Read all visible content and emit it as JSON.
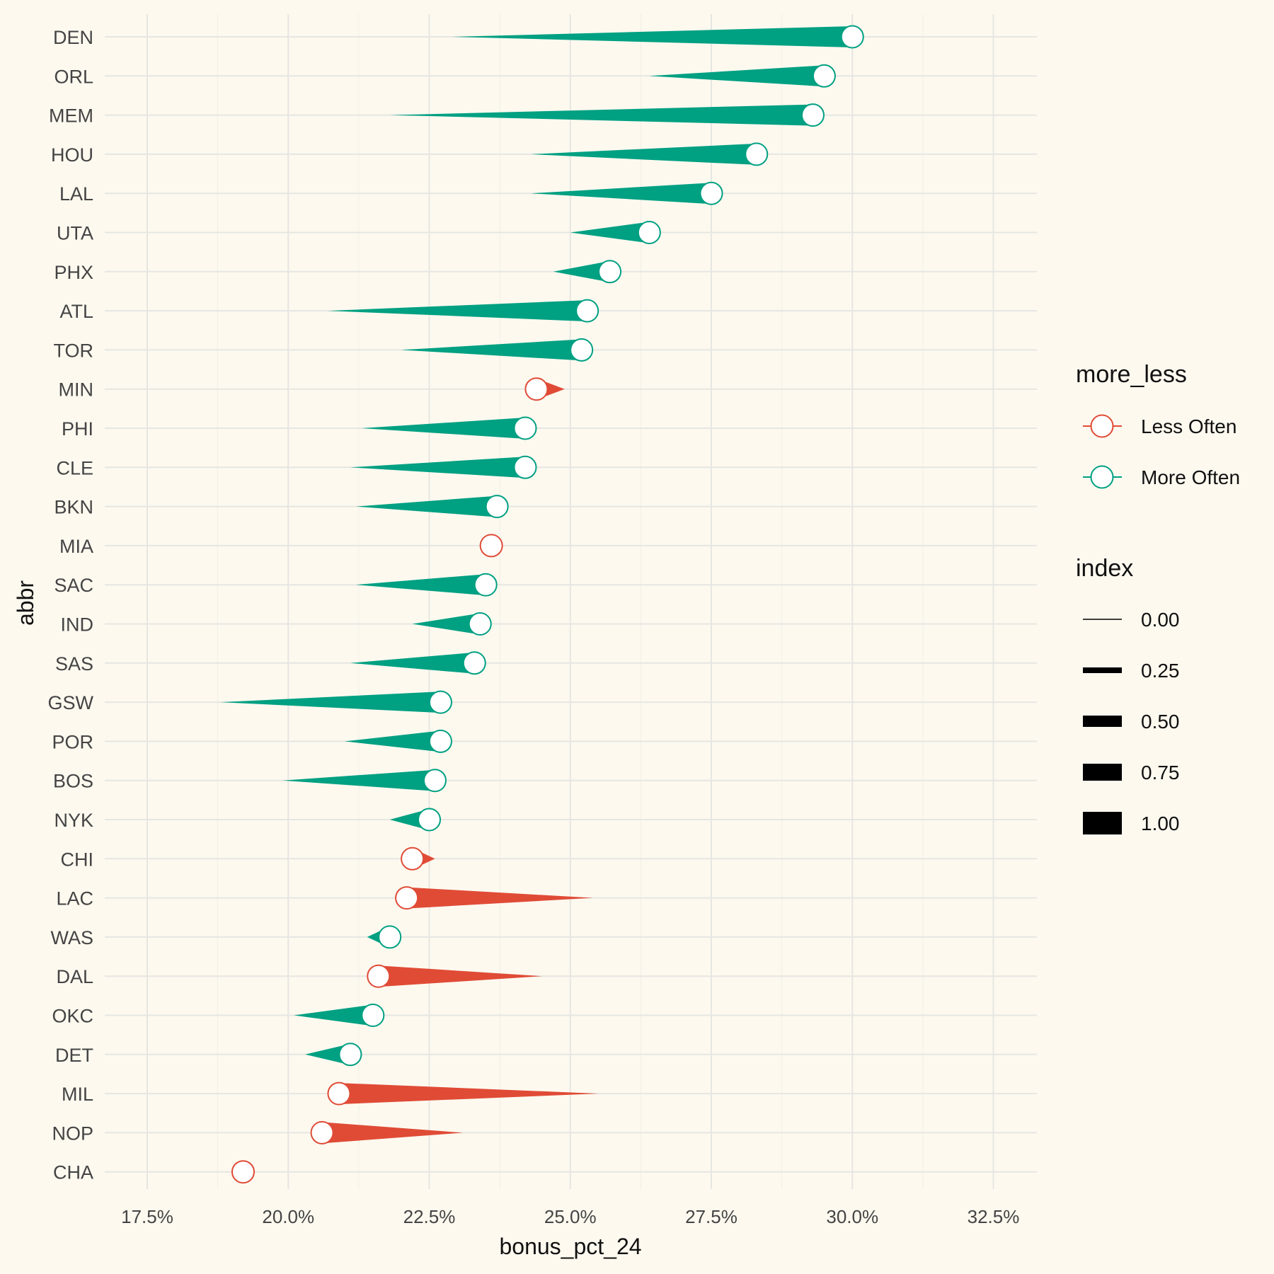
{
  "chart_data": {
    "type": "dumbbell",
    "title": "",
    "xlabel": "bonus_pct_24",
    "ylabel": "abbr",
    "xlim": [
      17.5,
      32.5
    ],
    "x_ticks": [
      17.5,
      20.0,
      22.5,
      25.0,
      27.5,
      30.0,
      32.5
    ],
    "x_tick_labels": [
      "17.5%",
      "20.0%",
      "22.5%",
      "25.0%",
      "27.5%",
      "30.0%",
      "32.5%"
    ],
    "grid": true,
    "legend_position": "right",
    "colors": {
      "Less Often": "#e04b36",
      "More Often": "#00a082"
    },
    "rows": [
      {
        "abbr": "DEN",
        "bonus_pct_24": 30.0,
        "bonus_pct_23": 22.9,
        "more_less": "More Often"
      },
      {
        "abbr": "ORL",
        "bonus_pct_24": 29.5,
        "bonus_pct_23": 26.4,
        "more_less": "More Often"
      },
      {
        "abbr": "MEM",
        "bonus_pct_24": 29.3,
        "bonus_pct_23": 21.8,
        "more_less": "More Often"
      },
      {
        "abbr": "HOU",
        "bonus_pct_24": 28.3,
        "bonus_pct_23": 24.3,
        "more_less": "More Often"
      },
      {
        "abbr": "LAL",
        "bonus_pct_24": 27.5,
        "bonus_pct_23": 24.3,
        "more_less": "More Often"
      },
      {
        "abbr": "UTA",
        "bonus_pct_24": 26.4,
        "bonus_pct_23": 25.0,
        "more_less": "More Often"
      },
      {
        "abbr": "PHX",
        "bonus_pct_24": 25.7,
        "bonus_pct_23": 24.7,
        "more_less": "More Often"
      },
      {
        "abbr": "ATL",
        "bonus_pct_24": 25.3,
        "bonus_pct_23": 20.7,
        "more_less": "More Often"
      },
      {
        "abbr": "TOR",
        "bonus_pct_24": 25.2,
        "bonus_pct_23": 22.0,
        "more_less": "More Often"
      },
      {
        "abbr": "MIN",
        "bonus_pct_24": 24.4,
        "bonus_pct_23": 24.9,
        "more_less": "Less Often"
      },
      {
        "abbr": "PHI",
        "bonus_pct_24": 24.2,
        "bonus_pct_23": 21.3,
        "more_less": "More Often"
      },
      {
        "abbr": "CLE",
        "bonus_pct_24": 24.2,
        "bonus_pct_23": 21.1,
        "more_less": "More Often"
      },
      {
        "abbr": "BKN",
        "bonus_pct_24": 23.7,
        "bonus_pct_23": 21.2,
        "more_less": "More Often"
      },
      {
        "abbr": "MIA",
        "bonus_pct_24": 23.6,
        "bonus_pct_23": 23.6,
        "more_less": "Less Often"
      },
      {
        "abbr": "SAC",
        "bonus_pct_24": 23.5,
        "bonus_pct_23": 21.2,
        "more_less": "More Often"
      },
      {
        "abbr": "IND",
        "bonus_pct_24": 23.4,
        "bonus_pct_23": 22.2,
        "more_less": "More Often"
      },
      {
        "abbr": "SAS",
        "bonus_pct_24": 23.3,
        "bonus_pct_23": 21.1,
        "more_less": "More Often"
      },
      {
        "abbr": "GSW",
        "bonus_pct_24": 22.7,
        "bonus_pct_23": 18.8,
        "more_less": "More Often"
      },
      {
        "abbr": "POR",
        "bonus_pct_24": 22.7,
        "bonus_pct_23": 21.0,
        "more_less": "More Often"
      },
      {
        "abbr": "BOS",
        "bonus_pct_24": 22.6,
        "bonus_pct_23": 19.9,
        "more_less": "More Often"
      },
      {
        "abbr": "NYK",
        "bonus_pct_24": 22.5,
        "bonus_pct_23": 21.8,
        "more_less": "More Often"
      },
      {
        "abbr": "CHI",
        "bonus_pct_24": 22.2,
        "bonus_pct_23": 22.6,
        "more_less": "Less Often"
      },
      {
        "abbr": "LAC",
        "bonus_pct_24": 22.1,
        "bonus_pct_23": 25.4,
        "more_less": "Less Often"
      },
      {
        "abbr": "WAS",
        "bonus_pct_24": 21.8,
        "bonus_pct_23": 21.4,
        "more_less": "More Often"
      },
      {
        "abbr": "DAL",
        "bonus_pct_24": 21.6,
        "bonus_pct_23": 24.5,
        "more_less": "Less Often"
      },
      {
        "abbr": "OKC",
        "bonus_pct_24": 21.5,
        "bonus_pct_23": 20.1,
        "more_less": "More Often"
      },
      {
        "abbr": "DET",
        "bonus_pct_24": 21.1,
        "bonus_pct_23": 20.3,
        "more_less": "More Often"
      },
      {
        "abbr": "MIL",
        "bonus_pct_24": 20.9,
        "bonus_pct_23": 25.5,
        "more_less": "Less Often"
      },
      {
        "abbr": "NOP",
        "bonus_pct_24": 20.6,
        "bonus_pct_23": 23.1,
        "more_less": "Less Often"
      },
      {
        "abbr": "CHA",
        "bonus_pct_24": 19.2,
        "bonus_pct_23": 19.2,
        "more_less": "Less Often"
      }
    ],
    "legend": {
      "color_title": "more_less",
      "color_entries": [
        "Less Often",
        "More Often"
      ],
      "size_title": "index",
      "size_entries": [
        {
          "label": "0.00",
          "value": 0.0
        },
        {
          "label": "0.25",
          "value": 0.25
        },
        {
          "label": "0.50",
          "value": 0.5
        },
        {
          "label": "0.75",
          "value": 0.75
        },
        {
          "label": "1.00",
          "value": 1.0
        }
      ]
    }
  }
}
